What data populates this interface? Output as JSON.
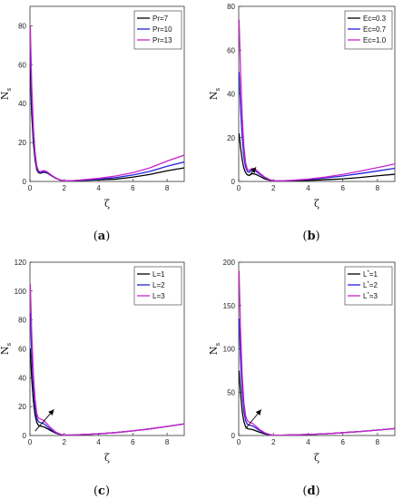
{
  "chart_data": [
    {
      "type": "line",
      "caption": "(a)",
      "xlabel": "ζ",
      "ylabel": "N",
      "ylabel_sub": "s",
      "xlim": [
        0,
        9
      ],
      "ylim": [
        0,
        90
      ],
      "xticks": [
        0,
        2,
        4,
        6,
        8
      ],
      "yticks": [
        0,
        20,
        40,
        60,
        80
      ],
      "legend_position": "top-right",
      "grid": false,
      "arrow": null,
      "series": [
        {
          "name": "Pr=7",
          "color": "#000000",
          "x": [
            0.02,
            0.1,
            0.2,
            0.3,
            0.4,
            0.5,
            0.6,
            0.8,
            1.0,
            1.2,
            1.5,
            1.8,
            2.0,
            2.5,
            3,
            4,
            5,
            6,
            7,
            8,
            9
          ],
          "y": [
            58,
            35,
            20,
            11,
            6,
            4.5,
            4.2,
            4.8,
            4.4,
            3.2,
            1.6,
            0.6,
            0.3,
            0.3,
            0.5,
            0.8,
            1.2,
            2.2,
            3.6,
            5.5,
            7
          ]
        },
        {
          "name": "Pr=10",
          "color": "#2222dd",
          "x": [
            0.02,
            0.1,
            0.2,
            0.3,
            0.4,
            0.5,
            0.6,
            0.8,
            1.0,
            1.2,
            1.5,
            1.8,
            2.0,
            2.5,
            3,
            4,
            5,
            6,
            7,
            8,
            9
          ],
          "y": [
            68,
            42,
            24,
            13,
            7,
            5,
            4.6,
            5.2,
            4.7,
            3.4,
            1.7,
            0.7,
            0.3,
            0.4,
            0.6,
            1.2,
            2.0,
            3.3,
            5.2,
            7.8,
            10
          ]
        },
        {
          "name": "Pr=13",
          "color": "#cc22cc",
          "x": [
            0.02,
            0.1,
            0.2,
            0.3,
            0.4,
            0.5,
            0.6,
            0.8,
            1.0,
            1.2,
            1.5,
            1.8,
            2.0,
            2.5,
            3,
            4,
            5,
            6,
            7,
            8,
            9
          ],
          "y": [
            80,
            50,
            28,
            15,
            8,
            5.5,
            5,
            5.6,
            5,
            3.6,
            1.8,
            0.7,
            0.3,
            0.4,
            0.8,
            1.6,
            2.8,
            4.5,
            7,
            10.5,
            13.5
          ]
        }
      ]
    },
    {
      "type": "line",
      "caption": "(b)",
      "xlabel": "ζ",
      "ylabel": "N",
      "ylabel_sub": "s",
      "xlim": [
        0,
        9
      ],
      "ylim": [
        0,
        80
      ],
      "xticks": [
        0,
        2,
        4,
        6,
        8
      ],
      "yticks": [
        0,
        20,
        40,
        60,
        80
      ],
      "legend_position": "top-right",
      "grid": false,
      "arrow": {
        "x1": 0.6,
        "y1": 2.5,
        "x2": 1.0,
        "y2": 6.5
      },
      "series": [
        {
          "name": "Ec=0.3",
          "color": "#000000",
          "x": [
            0.02,
            0.1,
            0.2,
            0.3,
            0.4,
            0.5,
            0.6,
            0.7,
            0.8,
            1.0,
            1.2,
            1.5,
            1.8,
            2.0,
            2.5,
            3,
            4,
            5,
            6,
            7,
            8,
            9
          ],
          "y": [
            22,
            16,
            10,
            6,
            4,
            3,
            2.8,
            3.2,
            3.6,
            3.2,
            2.4,
            1.2,
            0.5,
            0.3,
            0.2,
            0.3,
            0.5,
            0.8,
            1.2,
            1.8,
            2.6,
            3.3
          ]
        },
        {
          "name": "Ec=0.7",
          "color": "#2222dd",
          "x": [
            0.02,
            0.1,
            0.2,
            0.3,
            0.4,
            0.5,
            0.6,
            0.7,
            0.8,
            1.0,
            1.2,
            1.5,
            1.8,
            2.0,
            2.5,
            3,
            4,
            5,
            6,
            7,
            8,
            9
          ],
          "y": [
            50,
            35,
            20,
            11,
            6.5,
            4.5,
            4.2,
            4.8,
            5.2,
            4.6,
            3.4,
            1.8,
            0.7,
            0.3,
            0.2,
            0.4,
            0.9,
            1.6,
            2.5,
            3.6,
            4.8,
            6
          ]
        },
        {
          "name": "Ec=1.0",
          "color": "#cc22cc",
          "x": [
            0.02,
            0.1,
            0.2,
            0.3,
            0.4,
            0.5,
            0.6,
            0.7,
            0.8,
            1.0,
            1.2,
            1.5,
            1.8,
            2.0,
            2.5,
            3,
            4,
            5,
            6,
            7,
            8,
            9
          ],
          "y": [
            74,
            52,
            30,
            16,
            8.5,
            5.5,
            5,
            5.6,
            6,
            5.3,
            3.9,
            2,
            0.8,
            0.3,
            0.3,
            0.5,
            1.1,
            2,
            3.2,
            4.7,
            6.3,
            8
          ]
        }
      ]
    },
    {
      "type": "line",
      "caption": "(c)",
      "xlabel": "ζ",
      "ylabel": "N",
      "ylabel_sub": "s",
      "xlim": [
        0,
        9
      ],
      "ylim": [
        0,
        120
      ],
      "xticks": [
        0,
        2,
        4,
        6,
        8
      ],
      "yticks": [
        0,
        20,
        40,
        60,
        80,
        100,
        120
      ],
      "legend_position": "top-right",
      "grid": false,
      "arrow": {
        "x1": 0.3,
        "y1": 3,
        "x2": 1.4,
        "y2": 18
      },
      "series": [
        {
          "name": "L=1",
          "color": "#000000",
          "x": [
            0.02,
            0.1,
            0.2,
            0.3,
            0.4,
            0.5,
            0.6,
            0.8,
            1.0,
            1.2,
            1.5,
            1.8,
            2.0,
            2.5,
            3,
            4,
            5,
            6,
            7,
            8,
            9
          ],
          "y": [
            60,
            40,
            24,
            14,
            9,
            7,
            6.5,
            6,
            4.8,
            3.4,
            1.6,
            0.6,
            0.3,
            0.3,
            0.6,
            1.2,
            2,
            3.2,
            4.6,
            6.3,
            8
          ]
        },
        {
          "name": "L=2",
          "color": "#2222dd",
          "x": [
            0.02,
            0.1,
            0.2,
            0.3,
            0.4,
            0.5,
            0.6,
            0.8,
            1.0,
            1.2,
            1.5,
            1.8,
            2.0,
            2.5,
            3,
            4,
            5,
            6,
            7,
            8,
            9
          ],
          "y": [
            85,
            58,
            34,
            20,
            12,
            9.5,
            9,
            8.2,
            6.3,
            4.3,
            2,
            0.7,
            0.3,
            0.3,
            0.6,
            1.2,
            2,
            3.2,
            4.6,
            6.3,
            8
          ]
        },
        {
          "name": "L=3",
          "color": "#cc22cc",
          "x": [
            0.02,
            0.1,
            0.2,
            0.3,
            0.4,
            0.5,
            0.6,
            0.8,
            1.0,
            1.2,
            1.5,
            1.8,
            2.0,
            2.5,
            3,
            4,
            5,
            6,
            7,
            8,
            9
          ],
          "y": [
            105,
            72,
            42,
            25,
            15,
            12,
            11.5,
            10.5,
            8,
            5.4,
            2.4,
            0.8,
            0.3,
            0.3,
            0.6,
            1.2,
            2,
            3.2,
            4.6,
            6.3,
            8
          ]
        }
      ]
    },
    {
      "type": "line",
      "caption": "(d)",
      "xlabel": "ζ",
      "ylabel": "N",
      "ylabel_sub": "s",
      "xlim": [
        0,
        9
      ],
      "ylim": [
        0,
        200
      ],
      "xticks": [
        0,
        2,
        4,
        6,
        8
      ],
      "yticks": [
        0,
        50,
        100,
        150,
        200
      ],
      "legend_position": "top-right",
      "grid": false,
      "arrow": {
        "x1": 0.4,
        "y1": 8,
        "x2": 1.3,
        "y2": 30
      },
      "series": [
        {
          "name": "L =1",
          "name_sup": "*",
          "color": "#000000",
          "x": [
            0.02,
            0.1,
            0.2,
            0.3,
            0.4,
            0.5,
            0.6,
            0.8,
            1.0,
            1.2,
            1.5,
            1.8,
            2.0,
            2.5,
            3,
            4,
            5,
            6,
            7,
            8,
            9
          ],
          "y": [
            75,
            50,
            28,
            16,
            10,
            8,
            7.5,
            6.8,
            5.4,
            3.8,
            1.8,
            0.7,
            0.3,
            0.3,
            0.6,
            1.2,
            2,
            3.2,
            4.6,
            6.3,
            8
          ]
        },
        {
          "name": "L =2",
          "name_sup": "*",
          "color": "#2222dd",
          "x": [
            0.02,
            0.1,
            0.2,
            0.3,
            0.4,
            0.5,
            0.6,
            0.8,
            1.0,
            1.2,
            1.5,
            1.8,
            2.0,
            2.5,
            3,
            4,
            5,
            6,
            7,
            8,
            9
          ],
          "y": [
            135,
            90,
            50,
            28,
            17,
            13,
            12,
            11,
            8.5,
            5.8,
            2.6,
            0.9,
            0.3,
            0.3,
            0.6,
            1.2,
            2,
            3.2,
            4.6,
            6.3,
            8
          ]
        },
        {
          "name": "L =3",
          "name_sup": "*",
          "color": "#cc22cc",
          "x": [
            0.02,
            0.1,
            0.2,
            0.3,
            0.4,
            0.5,
            0.6,
            0.8,
            1.0,
            1.2,
            1.5,
            1.8,
            2.0,
            2.5,
            3,
            4,
            5,
            6,
            7,
            8,
            9
          ],
          "y": [
            190,
            125,
            70,
            38,
            23,
            17,
            15.5,
            14,
            10.5,
            7,
            3.2,
            1,
            0.3,
            0.3,
            0.6,
            1.2,
            2,
            3.2,
            4.6,
            6.3,
            8
          ]
        }
      ]
    }
  ]
}
